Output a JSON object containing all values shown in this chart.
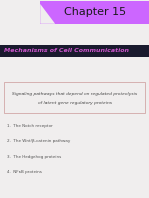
{
  "title": "Chapter 15",
  "subtitle": "Mechanisms of Cell Communication",
  "title_bg": "#cc66ff",
  "subtitle_bg": "#1a1a2e",
  "subtitle_color": "#cc66cc",
  "box_text_line1": "Signaling pathways that depend on regulated proteolysis",
  "box_text_line2": "of latent gene regulatory proteins",
  "list_items": [
    "1.  The Notch receptor",
    "2.  The Wnt/β-catenin pathway",
    "3.  The Hedgehog proteins",
    "4.  NFκB proteins"
  ],
  "bg_color": "#f0eeee",
  "title_text_color": "#1a1a1a",
  "subtitle_text_color": "#cc55cc",
  "box_border_color": "#cc9999",
  "list_color": "#555555"
}
